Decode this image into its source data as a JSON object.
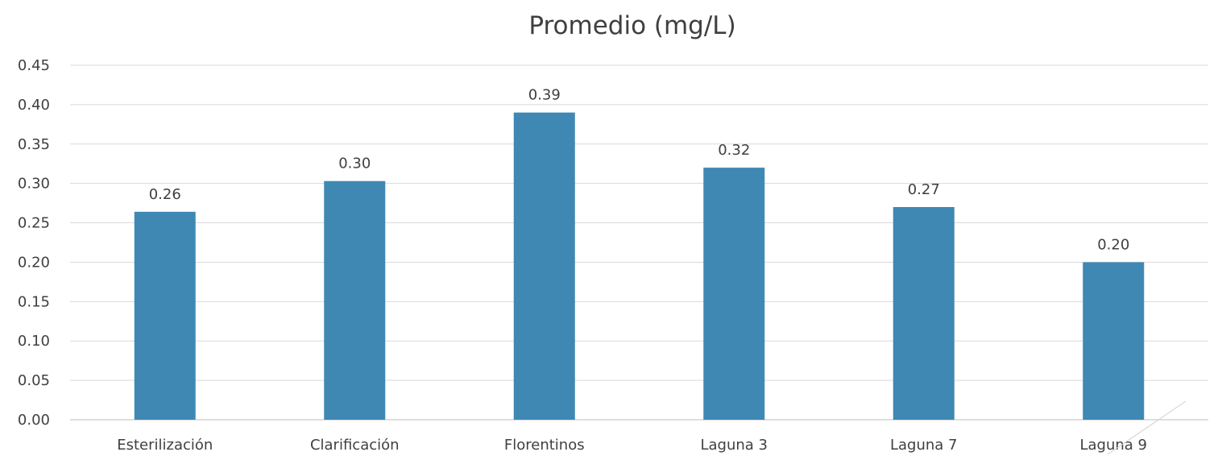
{
  "chart_data": {
    "type": "bar",
    "title": "Promedio (mg/L)",
    "xlabel": "",
    "ylabel": "",
    "categories": [
      "Esterilización",
      "Clarificación",
      "Florentinos",
      "Laguna 3",
      "Laguna 7",
      "Laguna 9"
    ],
    "values": [
      0.264,
      0.303,
      0.39,
      0.32,
      0.27,
      0.2
    ],
    "data_labels": [
      "0.26",
      "0.30",
      "0.39",
      "0.32",
      "0.27",
      "0.20"
    ],
    "y_ticks": [
      "0.00",
      "0.05",
      "0.10",
      "0.15",
      "0.20",
      "0.25",
      "0.30",
      "0.35",
      "0.40",
      "0.45"
    ],
    "ylim": [
      0,
      0.45
    ],
    "grid": true,
    "legend": "none",
    "bar_color": "#3f88b4"
  }
}
